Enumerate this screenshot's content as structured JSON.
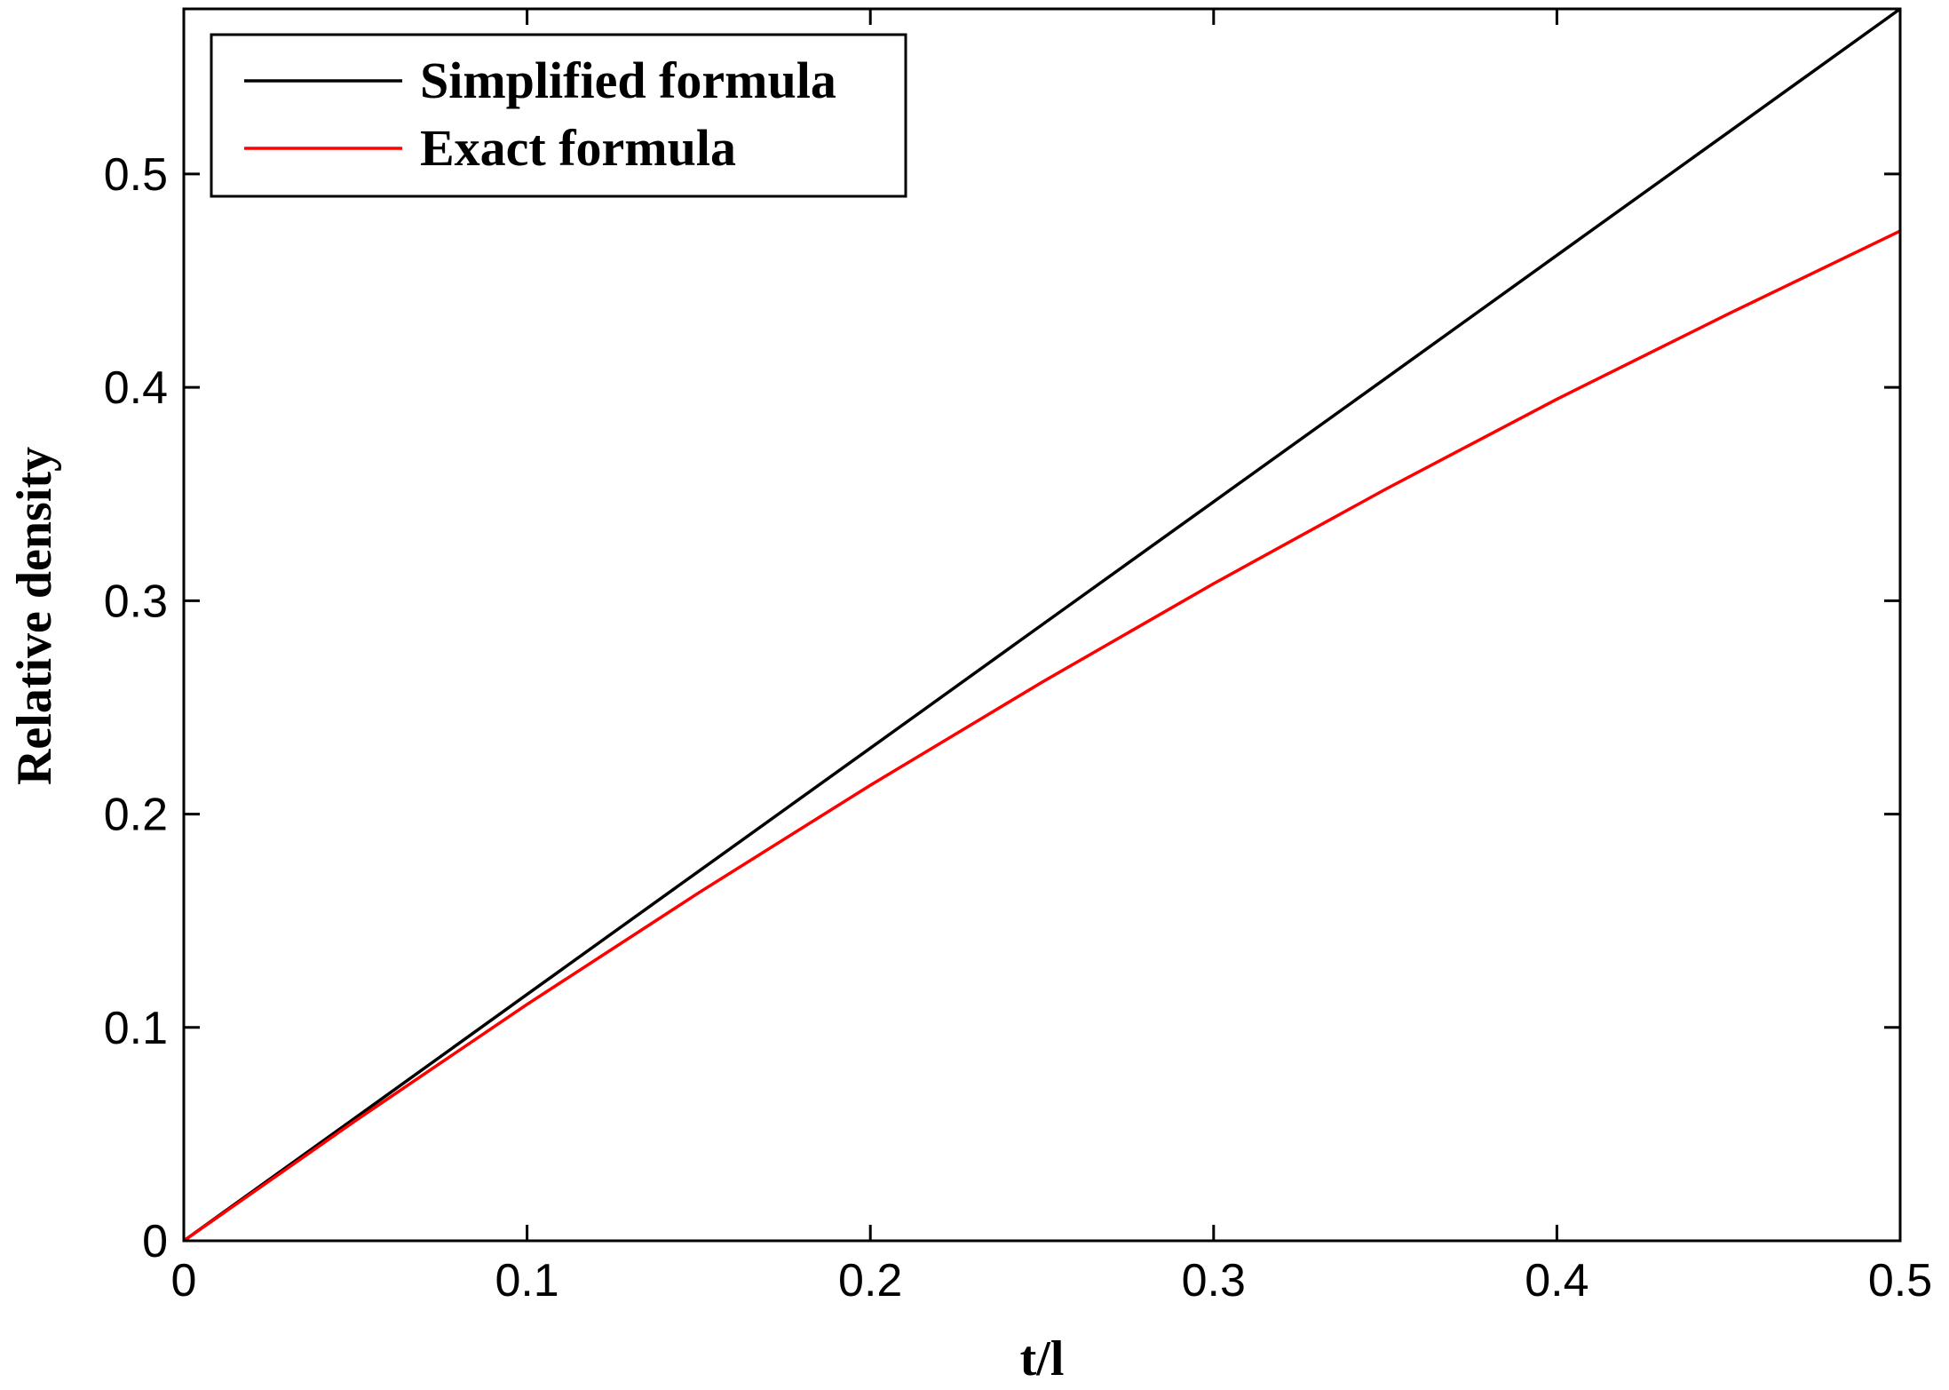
{
  "chart_data": {
    "type": "line",
    "title": "",
    "xlabel": "t/l",
    "ylabel": "Relative density",
    "xlim": [
      0,
      0.5
    ],
    "ylim": [
      0,
      0.5774
    ],
    "x_ticks": [
      0,
      0.1,
      0.2,
      0.3,
      0.4,
      0.5
    ],
    "x_tick_labels": [
      "0",
      "0.1",
      "0.2",
      "0.3",
      "0.4",
      "0.5"
    ],
    "y_ticks": [
      0,
      0.1,
      0.2,
      0.3,
      0.4,
      0.5
    ],
    "y_tick_labels": [
      "0",
      "0.1",
      "0.2",
      "0.3",
      "0.4",
      "0.5"
    ],
    "grid": false,
    "legend_position": "top-left",
    "x": [
      0,
      0.05,
      0.1,
      0.15,
      0.2,
      0.25,
      0.3,
      0.35,
      0.4,
      0.45,
      0.5
    ],
    "series": [
      {
        "name": "Simplified formula",
        "color": "#000000",
        "values": [
          0,
          0.0577,
          0.1155,
          0.1732,
          0.2309,
          0.2887,
          0.3464,
          0.4041,
          0.4619,
          0.5196,
          0.5774
        ]
      },
      {
        "name": "Exact formula",
        "color": "#ff0000",
        "values": [
          0,
          0.0563,
          0.1108,
          0.1631,
          0.2135,
          0.2618,
          0.308,
          0.3522,
          0.3945,
          0.4345,
          0.4733
        ]
      }
    ]
  }
}
